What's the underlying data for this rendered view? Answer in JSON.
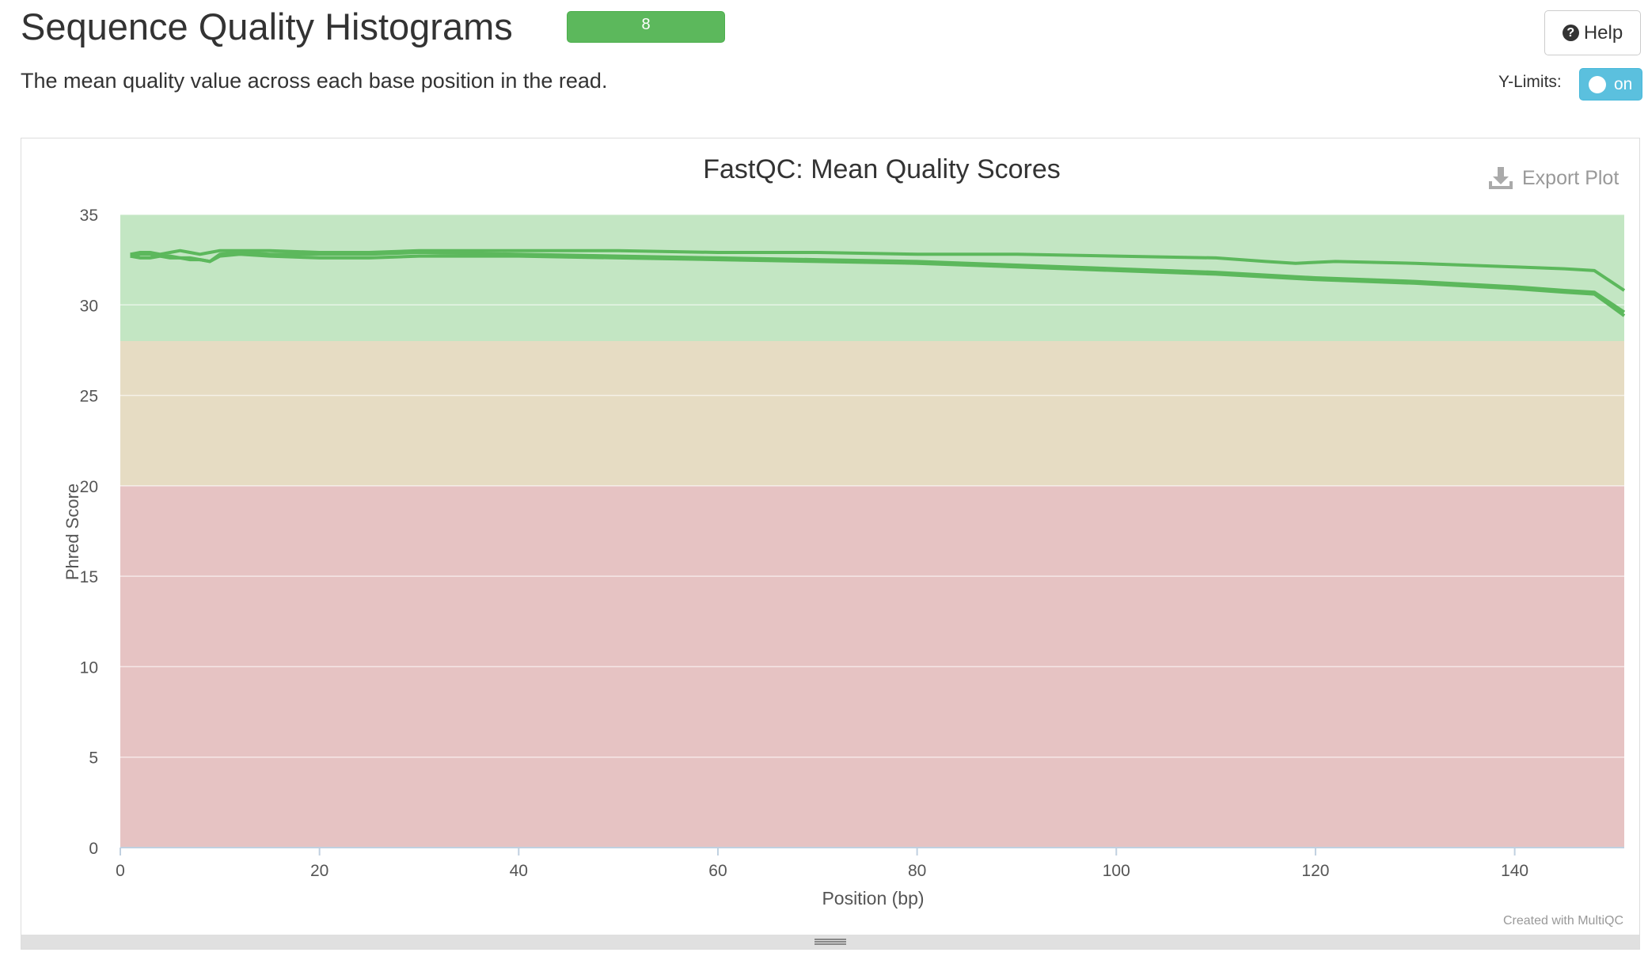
{
  "header": {
    "title": "Sequence Quality Histograms",
    "badge_count": "8",
    "help_label": "Help",
    "description": "The mean quality value across each base position in the read.",
    "ylimits_label": "Y-Limits:",
    "ylimits_state": "on"
  },
  "plot": {
    "export_label": "Export Plot",
    "credit": "Created with MultiQC"
  },
  "colors": {
    "line": "#5cb85c",
    "band_good": "#c3e6c3",
    "band_warn": "#e6dcc3",
    "band_fail": "#e6c3c3",
    "badge": "#5cb85c",
    "toggle": "#5bc0de"
  },
  "chart_data": {
    "type": "line",
    "title": "FastQC: Mean Quality Scores",
    "xlabel": "Position (bp)",
    "ylabel": "Phred Score",
    "xlim": [
      0,
      151
    ],
    "ylim": [
      0,
      35
    ],
    "x_ticks": [
      0,
      20,
      40,
      60,
      80,
      100,
      120,
      140
    ],
    "y_ticks": [
      0,
      5,
      10,
      15,
      20,
      25,
      30,
      35
    ],
    "bands": [
      {
        "from": 28,
        "to": 35,
        "color": "#c3e6c3"
      },
      {
        "from": 20,
        "to": 28,
        "color": "#e6dcc3"
      },
      {
        "from": 0,
        "to": 20,
        "color": "#e6c3c3"
      }
    ],
    "grid": true,
    "legend": "none",
    "series": [
      {
        "x": [
          1,
          2,
          3,
          4,
          5,
          6,
          7,
          8,
          9,
          10,
          12,
          15,
          20,
          25,
          30,
          40,
          50,
          60,
          70,
          80,
          90,
          100,
          110,
          115,
          118,
          122,
          130,
          140,
          145,
          148,
          151
        ],
        "y": [
          32.8,
          32.9,
          32.9,
          32.8,
          32.9,
          33.0,
          32.9,
          32.8,
          32.9,
          33.0,
          33.0,
          33.0,
          32.9,
          32.9,
          33.0,
          33.0,
          33.0,
          32.9,
          32.9,
          32.8,
          32.8,
          32.7,
          32.6,
          32.4,
          32.3,
          32.4,
          32.3,
          32.1,
          32.0,
          31.9,
          30.8
        ]
      },
      {
        "x": [
          1,
          2,
          3,
          4,
          5,
          6,
          7,
          8,
          9,
          10,
          12,
          15,
          20,
          25,
          30,
          40,
          50,
          60,
          70,
          80,
          90,
          100,
          110,
          120,
          130,
          140,
          145,
          148,
          151
        ],
        "y": [
          32.7,
          32.8,
          32.8,
          32.7,
          32.6,
          32.6,
          32.6,
          32.5,
          32.4,
          32.8,
          32.9,
          32.8,
          32.8,
          32.8,
          32.9,
          32.8,
          32.7,
          32.6,
          32.5,
          32.4,
          32.2,
          32.0,
          31.8,
          31.5,
          31.3,
          31.0,
          30.8,
          30.7,
          29.6
        ]
      },
      {
        "x": [
          1,
          2,
          3,
          4,
          5,
          6,
          7,
          8,
          9,
          10,
          12,
          15,
          20,
          25,
          30,
          40,
          50,
          60,
          70,
          80,
          90,
          100,
          110,
          120,
          130,
          140,
          145,
          148,
          151
        ],
        "y": [
          32.7,
          32.6,
          32.6,
          32.7,
          32.7,
          32.6,
          32.5,
          32.5,
          32.4,
          32.7,
          32.8,
          32.7,
          32.6,
          32.6,
          32.7,
          32.7,
          32.6,
          32.5,
          32.4,
          32.3,
          32.1,
          31.9,
          31.7,
          31.4,
          31.2,
          30.9,
          30.7,
          30.6,
          29.4
        ]
      }
    ]
  }
}
